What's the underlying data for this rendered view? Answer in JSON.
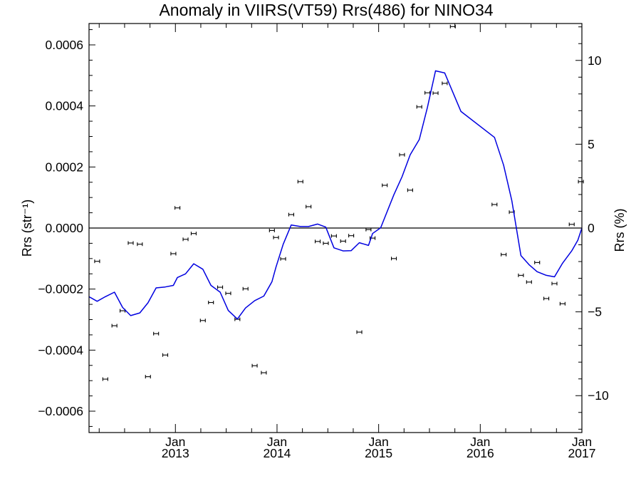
{
  "chart_data": {
    "type": "scatter",
    "title": "Anomaly in VIIRS(VT59) Rrs(486) for NINO34",
    "ylabel_left": "Rrs (str⁻¹)",
    "ylabel_right": "Rrs (%)",
    "ylim_left": [
      -0.00067,
      0.00067
    ],
    "ylim_right": [
      -12.2,
      12.2
    ],
    "xlim": [
      2012.15,
      2017.0
    ],
    "grid": false,
    "y_ticks_left": [
      "−0.0006",
      "−0.0004",
      "−0.0002",
      "0.0000",
      "0.0002",
      "0.0004",
      "0.0006"
    ],
    "y_tick_values_left": [
      -0.0006,
      -0.0004,
      -0.0002,
      0.0,
      0.0002,
      0.0004,
      0.0006
    ],
    "y_ticks_right": [
      "−10",
      "−5",
      "0",
      "5",
      "10"
    ],
    "y_tick_values_right": [
      -10,
      -5,
      0,
      5,
      10
    ],
    "x_ticks": [
      {
        "x": 2013.0,
        "month": "Jan",
        "year": "2013"
      },
      {
        "x": 2014.0,
        "month": "Jan",
        "year": "2014"
      },
      {
        "x": 2015.0,
        "month": "Jan",
        "year": "2015"
      },
      {
        "x": 2016.0,
        "month": "Jan",
        "year": "2016"
      },
      {
        "x": 2017.0,
        "month": "Jan",
        "year": "2017"
      }
    ],
    "series": [
      {
        "kind": "points_with_error_bars",
        "axis": "left",
        "color": "#000000",
        "points": [
          {
            "x": 2012.23,
            "y": -0.000109
          },
          {
            "x": 2012.31,
            "y": -0.000495
          },
          {
            "x": 2012.4,
            "y": -0.00032
          },
          {
            "x": 2012.48,
            "y": -0.000271
          },
          {
            "x": 2012.56,
            "y": -4.9e-05
          },
          {
            "x": 2012.65,
            "y": -5.3e-05
          },
          {
            "x": 2012.73,
            "y": -0.000487
          },
          {
            "x": 2012.81,
            "y": -0.000346
          },
          {
            "x": 2012.9,
            "y": -0.000416
          },
          {
            "x": 2012.98,
            "y": -8.4e-05
          },
          {
            "x": 2013.02,
            "y": 6.6e-05
          },
          {
            "x": 2013.1,
            "y": -3.7e-05
          },
          {
            "x": 2013.18,
            "y": -1.8e-05
          },
          {
            "x": 2013.27,
            "y": -0.000303
          },
          {
            "x": 2013.35,
            "y": -0.000244
          },
          {
            "x": 2013.44,
            "y": -0.000194
          },
          {
            "x": 2013.52,
            "y": -0.000214
          },
          {
            "x": 2013.61,
            "y": -0.000299
          },
          {
            "x": 2013.69,
            "y": -0.000199
          },
          {
            "x": 2013.78,
            "y": -0.000451
          },
          {
            "x": 2013.87,
            "y": -0.000474
          },
          {
            "x": 2013.95,
            "y": -8e-06
          },
          {
            "x": 2013.99,
            "y": -3.1e-05
          },
          {
            "x": 2014.06,
            "y": -0.000101
          },
          {
            "x": 2014.14,
            "y": 4.4e-05
          },
          {
            "x": 2014.23,
            "y": 0.000152
          },
          {
            "x": 2014.31,
            "y": 7e-05
          },
          {
            "x": 2014.4,
            "y": -4.4e-05
          },
          {
            "x": 2014.48,
            "y": -5e-05
          },
          {
            "x": 2014.56,
            "y": -2.6e-05
          },
          {
            "x": 2014.65,
            "y": -4.3e-05
          },
          {
            "x": 2014.73,
            "y": -2.5e-05
          },
          {
            "x": 2014.81,
            "y": -0.000341
          },
          {
            "x": 2014.9,
            "y": -5e-06
          },
          {
            "x": 2014.94,
            "y": -3.3e-05
          },
          {
            "x": 2015.06,
            "y": 0.00014
          },
          {
            "x": 2015.15,
            "y": -0.0001
          },
          {
            "x": 2015.23,
            "y": 0.00024
          },
          {
            "x": 2015.31,
            "y": 0.000124
          },
          {
            "x": 2015.4,
            "y": 0.000397
          },
          {
            "x": 2015.48,
            "y": 0.000443
          },
          {
            "x": 2015.56,
            "y": 0.000442
          },
          {
            "x": 2015.65,
            "y": 0.000474
          },
          {
            "x": 2015.73,
            "y": 0.00066
          },
          {
            "x": 2016.14,
            "y": 7.7e-05
          },
          {
            "x": 2016.23,
            "y": -8.7e-05
          },
          {
            "x": 2016.31,
            "y": 5.2e-05
          },
          {
            "x": 2016.4,
            "y": -0.000155
          },
          {
            "x": 2016.48,
            "y": -0.000177
          },
          {
            "x": 2016.56,
            "y": -0.000113
          },
          {
            "x": 2016.65,
            "y": -0.000231
          },
          {
            "x": 2016.73,
            "y": -0.000182
          },
          {
            "x": 2016.81,
            "y": -0.000248
          },
          {
            "x": 2016.9,
            "y": 1.2e-05
          },
          {
            "x": 2016.99,
            "y": 0.000152
          }
        ]
      },
      {
        "kind": "line",
        "axis": "left",
        "color": "#0000e0",
        "points": [
          {
            "x": 2012.15,
            "y": -0.000225
          },
          {
            "x": 2012.23,
            "y": -0.00024
          },
          {
            "x": 2012.31,
            "y": -0.000225
          },
          {
            "x": 2012.4,
            "y": -0.00021
          },
          {
            "x": 2012.48,
            "y": -0.00026
          },
          {
            "x": 2012.56,
            "y": -0.000287
          },
          {
            "x": 2012.65,
            "y": -0.000278
          },
          {
            "x": 2012.73,
            "y": -0.000245
          },
          {
            "x": 2012.81,
            "y": -0.000196
          },
          {
            "x": 2012.9,
            "y": -0.000193
          },
          {
            "x": 2012.98,
            "y": -0.000188
          },
          {
            "x": 2013.02,
            "y": -0.000162
          },
          {
            "x": 2013.1,
            "y": -0.00015
          },
          {
            "x": 2013.18,
            "y": -0.000117
          },
          {
            "x": 2013.27,
            "y": -0.000135
          },
          {
            "x": 2013.35,
            "y": -0.000188
          },
          {
            "x": 2013.44,
            "y": -0.00021
          },
          {
            "x": 2013.52,
            "y": -0.00027
          },
          {
            "x": 2013.61,
            "y": -0.000298
          },
          {
            "x": 2013.69,
            "y": -0.000262
          },
          {
            "x": 2013.78,
            "y": -0.000238
          },
          {
            "x": 2013.87,
            "y": -0.000223
          },
          {
            "x": 2013.95,
            "y": -0.000176
          },
          {
            "x": 2013.99,
            "y": -0.000128
          },
          {
            "x": 2014.06,
            "y": -5.4e-05
          },
          {
            "x": 2014.14,
            "y": 1e-05
          },
          {
            "x": 2014.23,
            "y": 5e-06
          },
          {
            "x": 2014.31,
            "y": 5e-06
          },
          {
            "x": 2014.4,
            "y": 1.3e-05
          },
          {
            "x": 2014.48,
            "y": 3e-06
          },
          {
            "x": 2014.56,
            "y": -6.5e-05
          },
          {
            "x": 2014.65,
            "y": -7.5e-05
          },
          {
            "x": 2014.73,
            "y": -7.4e-05
          },
          {
            "x": 2014.81,
            "y": -4.8e-05
          },
          {
            "x": 2014.9,
            "y": -5.7e-05
          },
          {
            "x": 2014.94,
            "y": -1.8e-05
          },
          {
            "x": 2015.02,
            "y": 1e-06
          },
          {
            "x": 2015.15,
            "y": 0.000109
          },
          {
            "x": 2015.23,
            "y": 0.000168
          },
          {
            "x": 2015.31,
            "y": 0.00024
          },
          {
            "x": 2015.4,
            "y": 0.00029
          },
          {
            "x": 2015.48,
            "y": 0.000395
          },
          {
            "x": 2015.56,
            "y": 0.000515
          },
          {
            "x": 2015.65,
            "y": 0.000508
          },
          {
            "x": 2015.73,
            "y": 0.000445
          },
          {
            "x": 2015.81,
            "y": 0.000382
          },
          {
            "x": 2016.14,
            "y": 0.000297
          },
          {
            "x": 2016.23,
            "y": 0.000206
          },
          {
            "x": 2016.31,
            "y": 9e-05
          },
          {
            "x": 2016.4,
            "y": -9e-05
          },
          {
            "x": 2016.48,
            "y": -0.00012
          },
          {
            "x": 2016.56,
            "y": -0.000143
          },
          {
            "x": 2016.65,
            "y": -0.000155
          },
          {
            "x": 2016.73,
            "y": -0.00016
          },
          {
            "x": 2016.81,
            "y": -0.000115
          },
          {
            "x": 2016.9,
            "y": -7.5e-05
          },
          {
            "x": 2016.96,
            "y": -4e-05
          },
          {
            "x": 2017.0,
            "y": 0.0
          }
        ]
      }
    ]
  }
}
